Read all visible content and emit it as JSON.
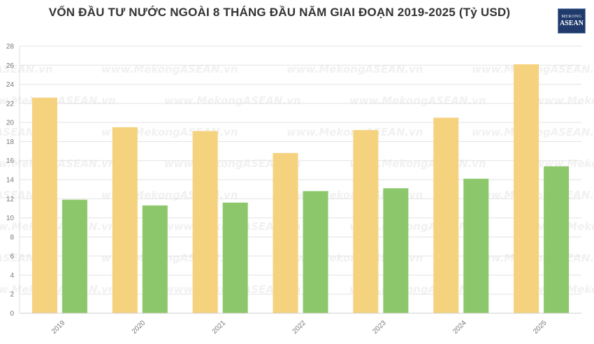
{
  "header": {
    "title": "VỐN ĐẦU TƯ NƯỚC NGOÀI 8 THÁNG ĐẦU NĂM GIAI ĐOẠN 2019-2025 (Tỷ USD)",
    "logo_line1": "MEKONG",
    "logo_line2": "ASEAN"
  },
  "watermark": "www.MekongASEAN.vn",
  "colors": {
    "series1": "#f5d27e",
    "series2": "#8cc86b",
    "grid": "#e3e3e3",
    "logo_bg": "#1f3a6b"
  },
  "chart_data": {
    "type": "bar",
    "title": "VỐN ĐẦU TƯ NƯỚC NGOÀI 8 THÁNG ĐẦU NĂM GIAI ĐOẠN 2019-2025 (Tỷ USD)",
    "categories": [
      "2019",
      "2020",
      "2021",
      "2022",
      "2023",
      "2024",
      "2025"
    ],
    "series": [
      {
        "values": [
          22.6,
          19.5,
          19.1,
          16.8,
          19.2,
          20.5,
          26.1
        ]
      },
      {
        "values": [
          11.9,
          11.3,
          11.6,
          12.8,
          13.1,
          14.1,
          15.4
        ]
      }
    ],
    "ylim": [
      0,
      28
    ],
    "yticks": [
      0,
      2,
      4,
      6,
      8,
      10,
      12,
      14,
      16,
      18,
      20,
      22,
      24,
      26,
      28
    ],
    "grid": true,
    "legend": "none"
  }
}
